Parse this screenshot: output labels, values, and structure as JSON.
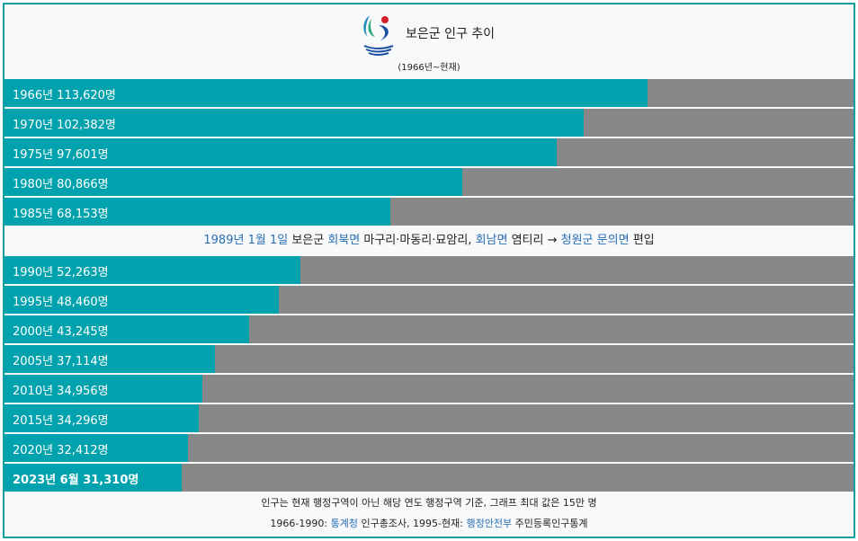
{
  "header": {
    "title": "보은군 인구 추이",
    "subtitle": "(1966년~현재)",
    "logo_icon": "boeun-county-emblem-icon"
  },
  "colors": {
    "bar": "#00a2ad",
    "track": "#888888",
    "border": "#0f9ea3",
    "link": "#2a6fb5"
  },
  "note": {
    "date_link": "1989년 1월 1일",
    "text_1": "보은군",
    "link_1": "회북면",
    "text_2": "마구리·마동리·묘암리,",
    "link_2": "회남면",
    "text_3": "염티리 →",
    "link_3": "청원군 문의면",
    "text_4": "편입"
  },
  "footer": {
    "line1": "인구는 현재 행정구역이 아닌 해당 연도 행정구역 기준, 그래프 최대 값은 15만 명",
    "line2_a": "1966-1990:",
    "line2_link1": "통계청",
    "line2_b": "인구총조사, 1995-현재:",
    "line2_link2": "행정안전부",
    "line2_c": "주민등록인구통계"
  },
  "chart_data": {
    "type": "bar",
    "orientation": "horizontal",
    "title": "보은군 인구 추이",
    "subtitle": "(1966년~현재)",
    "xlim": [
      0,
      150000
    ],
    "categories": [
      "1966년",
      "1970년",
      "1975년",
      "1980년",
      "1985년",
      "1990년",
      "1995년",
      "2000년",
      "2005년",
      "2010년",
      "2015년",
      "2020년",
      "2023년 6월"
    ],
    "values": [
      113620,
      102382,
      97601,
      80866,
      68153,
      52263,
      48460,
      43245,
      37114,
      34956,
      34296,
      32412,
      31310
    ],
    "labels": [
      "1966년 113,620명",
      "1970년 102,382명",
      "1975년 97,601명",
      "1980년 80,866명",
      "1985년 68,153명",
      "1990년 52,263명",
      "1995년 48,460명",
      "2000년 43,245명",
      "2005년 37,114명",
      "2010년 34,956명",
      "2015년 34,296명",
      "2020년 32,412명",
      "2023년 6월 31,310명"
    ]
  }
}
